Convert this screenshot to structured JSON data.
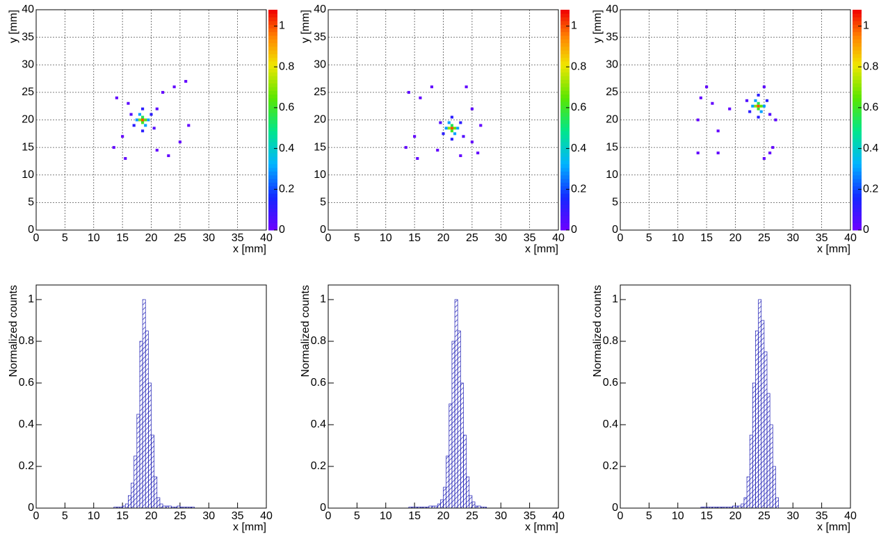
{
  "chart_data": [
    {
      "type": "heatmap",
      "x_label": "x [mm]",
      "y_label": "y [mm]",
      "x": [
        18.5,
        18,
        19,
        18.5,
        18.5,
        17.5,
        19.5,
        18,
        19,
        17,
        20,
        18.5,
        18.5,
        16.5,
        20.5,
        16,
        21,
        15,
        22,
        14,
        24,
        26,
        25,
        13.5,
        15.5,
        21,
        23,
        26.5
      ],
      "y": [
        20,
        20,
        20,
        19.5,
        20.5,
        20,
        20,
        21,
        19,
        19,
        21,
        22,
        18,
        21,
        18.5,
        23,
        22,
        17,
        25,
        24,
        26,
        27,
        16,
        15,
        13,
        14.5,
        13.5,
        19
      ],
      "values": [
        1,
        0.7,
        0.65,
        0.6,
        0.55,
        0.3,
        0.3,
        0.3,
        0.3,
        0.12,
        0.12,
        0.12,
        0.12,
        0.05,
        0.05,
        0.03,
        0.03,
        0.02,
        0.02,
        0.02,
        0.02,
        0.02,
        0.02,
        0.02,
        0.02,
        0.02,
        0.02,
        0.02
      ],
      "xlim": [
        0,
        40
      ],
      "ylim": [
        0,
        40
      ],
      "xticks": [
        0,
        5,
        10,
        15,
        20,
        25,
        30,
        35,
        40
      ],
      "yticks": [
        0,
        5,
        10,
        15,
        20,
        25,
        30,
        35,
        40
      ],
      "zlim": [
        0,
        1.08
      ],
      "zticks": [
        0,
        0.2,
        0.4,
        0.6,
        0.8,
        1
      ],
      "grid": true
    },
    {
      "type": "heatmap",
      "x_label": "x [mm]",
      "y_label": "y [mm]",
      "x": [
        21.5,
        21,
        22,
        21.5,
        21.5,
        20.5,
        22.5,
        21,
        22,
        20,
        23,
        21.5,
        21.5,
        19.5,
        23.5,
        14,
        25,
        15,
        18,
        16,
        24,
        26,
        25,
        13.5,
        15.5,
        19,
        23,
        26.5
      ],
      "y": [
        18.5,
        18.5,
        18.5,
        18,
        19,
        18.5,
        18.5,
        19.5,
        17.5,
        17.5,
        19.5,
        20.5,
        16.5,
        19.5,
        17,
        25,
        22,
        17,
        26,
        24,
        26,
        14,
        16,
        15,
        13,
        14.5,
        13.5,
        19
      ],
      "values": [
        1,
        0.7,
        0.65,
        0.6,
        0.55,
        0.3,
        0.3,
        0.3,
        0.3,
        0.12,
        0.12,
        0.12,
        0.12,
        0.05,
        0.05,
        0.03,
        0.03,
        0.02,
        0.02,
        0.02,
        0.02,
        0.02,
        0.02,
        0.02,
        0.02,
        0.02,
        0.02,
        0.02
      ],
      "xlim": [
        0,
        40
      ],
      "ylim": [
        0,
        40
      ],
      "xticks": [
        0,
        5,
        10,
        15,
        20,
        25,
        30,
        35,
        40
      ],
      "yticks": [
        0,
        5,
        10,
        15,
        20,
        25,
        30,
        35,
        40
      ],
      "zlim": [
        0,
        1.08
      ],
      "zticks": [
        0,
        0.2,
        0.4,
        0.6,
        0.8,
        1
      ],
      "grid": true
    },
    {
      "type": "heatmap",
      "x_label": "x [mm]",
      "y_label": "y [mm]",
      "x": [
        24,
        23.5,
        24.5,
        24,
        24,
        23,
        25,
        23.5,
        24.5,
        22.5,
        25.5,
        24,
        24,
        22,
        26,
        25,
        27,
        14,
        16,
        17,
        13.5,
        15,
        26,
        13.5,
        17,
        19,
        25,
        26.5
      ],
      "y": [
        22.5,
        22.5,
        22.5,
        22,
        23,
        22.5,
        22.5,
        23.5,
        21.5,
        21.5,
        23.5,
        24.5,
        20.5,
        23.5,
        21,
        26,
        20,
        24,
        23,
        18,
        20,
        26,
        14,
        14,
        14,
        22,
        13,
        15
      ],
      "values": [
        1,
        0.7,
        0.65,
        0.6,
        0.55,
        0.3,
        0.3,
        0.3,
        0.3,
        0.12,
        0.12,
        0.12,
        0.12,
        0.05,
        0.05,
        0.03,
        0.03,
        0.02,
        0.02,
        0.02,
        0.02,
        0.02,
        0.02,
        0.02,
        0.02,
        0.02,
        0.02,
        0.02
      ],
      "xlim": [
        0,
        40
      ],
      "ylim": [
        0,
        40
      ],
      "xticks": [
        0,
        5,
        10,
        15,
        20,
        25,
        30,
        35,
        40
      ],
      "yticks": [
        0,
        5,
        10,
        15,
        20,
        25,
        30,
        35,
        40
      ],
      "zlim": [
        0,
        1.08
      ],
      "zticks": [
        0,
        0.2,
        0.4,
        0.6,
        0.8,
        1
      ],
      "grid": true
    },
    {
      "type": "histogram",
      "x_label": "x [mm]",
      "y_label": "Normalized counts",
      "color": "#1a1ab4",
      "bins": [
        12,
        12.5,
        13,
        13.5,
        14,
        14.5,
        15,
        15.5,
        16,
        16.5,
        17,
        17.5,
        18,
        18.5,
        19,
        19.5,
        20,
        20.5,
        21,
        21.5,
        22,
        22.5,
        23,
        23.5,
        24,
        24.5,
        25,
        25.5,
        26,
        26.5,
        27,
        27.5,
        28
      ],
      "values": [
        0,
        0,
        0,
        0.005,
        0.005,
        0.005,
        0.01,
        0.02,
        0.06,
        0.12,
        0.25,
        0.45,
        0.8,
        1.0,
        0.85,
        0.6,
        0.35,
        0.15,
        0.05,
        0.02,
        0.01,
        0.01,
        0.01,
        0.005,
        0.005,
        0.01,
        0.005,
        0.005,
        0.005,
        0.005,
        0.005,
        0
      ],
      "xlim": [
        0,
        40
      ],
      "ylim": [
        0,
        1.07
      ],
      "xticks": [
        0,
        5,
        10,
        15,
        20,
        25,
        30,
        35,
        40
      ],
      "yticks": [
        0,
        0.2,
        0.4,
        0.6,
        0.8,
        1
      ],
      "grid": false
    },
    {
      "type": "histogram",
      "x_label": "x [mm]",
      "y_label": "Normalized counts",
      "color": "#1a1ab4",
      "bins": [
        12,
        12.5,
        13,
        13.5,
        14,
        14.5,
        15,
        15.5,
        16,
        16.5,
        17,
        17.5,
        18,
        18.5,
        19,
        19.5,
        20,
        20.5,
        21,
        21.5,
        22,
        22.5,
        23,
        23.5,
        24,
        24.5,
        25,
        25.5,
        26,
        26.5,
        27,
        27.5,
        28
      ],
      "values": [
        0,
        0,
        0,
        0,
        0.005,
        0.005,
        0.005,
        0.005,
        0.005,
        0.005,
        0.005,
        0.01,
        0.01,
        0.01,
        0.02,
        0.04,
        0.1,
        0.25,
        0.5,
        0.8,
        1.0,
        0.85,
        0.6,
        0.35,
        0.15,
        0.06,
        0.03,
        0.01,
        0.01,
        0.005,
        0.005,
        0
      ],
      "xlim": [
        0,
        40
      ],
      "ylim": [
        0,
        1.07
      ],
      "xticks": [
        0,
        5,
        10,
        15,
        20,
        25,
        30,
        35,
        40
      ],
      "yticks": [
        0,
        0.2,
        0.4,
        0.6,
        0.8,
        1
      ],
      "grid": false
    },
    {
      "type": "histogram",
      "x_label": "x [mm]",
      "y_label": "Normalized counts",
      "color": "#1a1ab4",
      "bins": [
        12,
        12.5,
        13,
        13.5,
        14,
        14.5,
        15,
        15.5,
        16,
        16.5,
        17,
        17.5,
        18,
        18.5,
        19,
        19.5,
        20,
        20.5,
        21,
        21.5,
        22,
        22.5,
        23,
        23.5,
        24,
        24.5,
        25,
        25.5,
        26,
        26.5,
        27,
        27.5,
        28
      ],
      "values": [
        0,
        0,
        0,
        0,
        0.005,
        0.005,
        0.005,
        0.005,
        0.005,
        0.005,
        0.005,
        0.005,
        0.005,
        0.005,
        0.005,
        0.01,
        0.01,
        0.01,
        0.02,
        0.05,
        0.15,
        0.35,
        0.6,
        0.85,
        1.0,
        0.9,
        0.75,
        0.55,
        0.4,
        0.2,
        0.05,
        0
      ],
      "xlim": [
        0,
        40
      ],
      "ylim": [
        0,
        1.07
      ],
      "xticks": [
        0,
        5,
        10,
        15,
        20,
        25,
        30,
        35,
        40
      ],
      "yticks": [
        0,
        0.2,
        0.4,
        0.6,
        0.8,
        1
      ],
      "grid": false
    }
  ]
}
